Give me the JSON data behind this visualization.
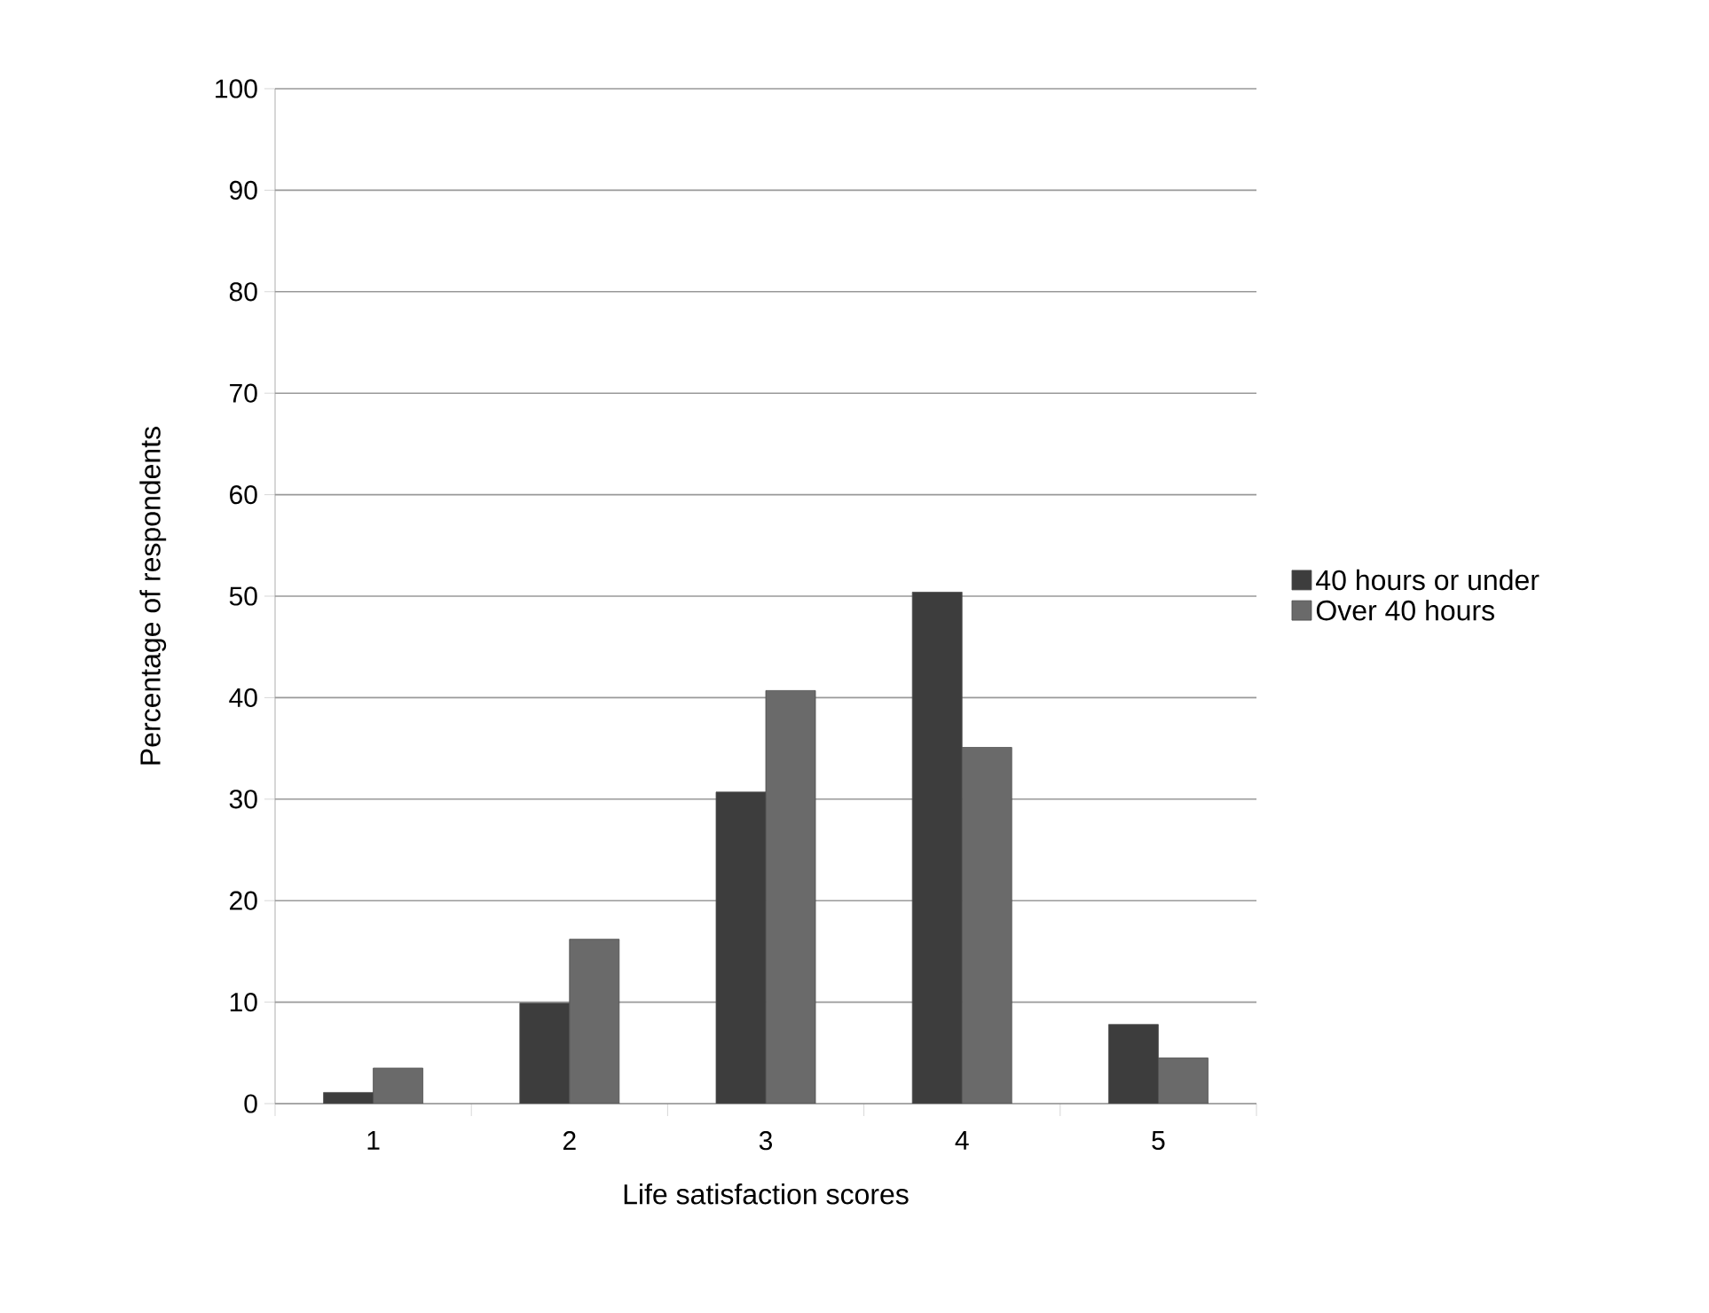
{
  "chart_data": {
    "type": "bar",
    "xlabel": "Life satisfaction scores",
    "ylabel": "Percentage of respondents",
    "categories": [
      "1",
      "2",
      "3",
      "4",
      "5"
    ],
    "series": [
      {
        "name": "40 hours or under",
        "color": "#3d3d3d",
        "values": [
          1.1,
          9.9,
          30.7,
          50.4,
          7.8
        ]
      },
      {
        "name": "Over 40 hours",
        "color": "#6a6a6a",
        "values": [
          3.5,
          16.2,
          40.7,
          35.1,
          4.5
        ]
      }
    ],
    "ylim": [
      0,
      100
    ],
    "yticks": [
      0,
      10,
      20,
      30,
      40,
      50,
      60,
      70,
      80,
      90,
      100
    ],
    "grid": "y",
    "legend": "right"
  }
}
